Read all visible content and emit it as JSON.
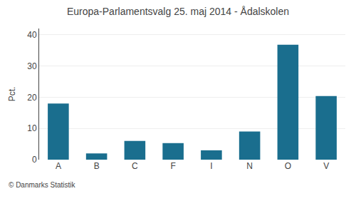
{
  "chart_data": {
    "type": "bar",
    "title": "Europa-Parlamentsvalg 25. maj 2014 - Ådalskolen",
    "categories": [
      "A",
      "B",
      "C",
      "F",
      "I",
      "N",
      "O",
      "V"
    ],
    "values": [
      18.0,
      2.0,
      6.0,
      5.3,
      3.0,
      9.0,
      36.8,
      20.4
    ],
    "color": "#1a6e8e",
    "ylabel": "Pct.",
    "annotations": [
      "© Danmarks Statistik"
    ],
    "ylim": [
      0,
      42
    ],
    "yticks": [
      0,
      10,
      20,
      30,
      40
    ],
    "grid": true
  }
}
